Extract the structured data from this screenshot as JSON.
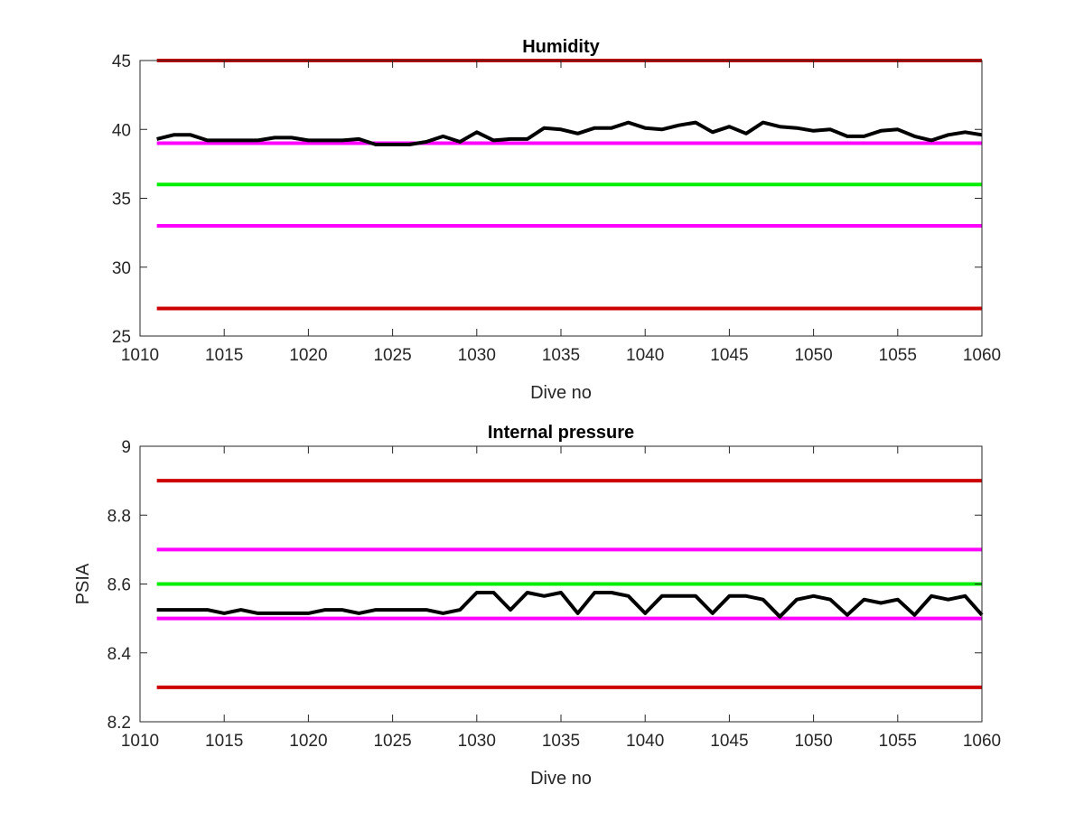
{
  "chart_data": [
    {
      "type": "line",
      "title": "Humidity",
      "xlabel": "Dive no",
      "ylabel": "",
      "xlim": [
        1010,
        1060
      ],
      "ylim": [
        25,
        45
      ],
      "xticks": [
        1010,
        1015,
        1020,
        1025,
        1030,
        1035,
        1040,
        1045,
        1050,
        1055,
        1060
      ],
      "yticks": [
        25,
        30,
        35,
        40,
        45
      ],
      "xtick_labels": [
        "1010",
        "1015",
        "1020",
        "1025",
        "1030",
        "1035",
        "1040",
        "1045",
        "1050",
        "1055",
        "1060"
      ],
      "ytick_labels": [
        "25",
        "30",
        "35",
        "40",
        "45"
      ],
      "grid": false,
      "reference_lines": [
        {
          "y": 45,
          "color": "#cc0000"
        },
        {
          "y": 39,
          "color": "#ff00ff"
        },
        {
          "y": 36,
          "color": "#00ee00"
        },
        {
          "y": 33,
          "color": "#ff00ff"
        },
        {
          "y": 27,
          "color": "#cc0000"
        }
      ],
      "series": [
        {
          "color": "#000000",
          "x": [
            1011,
            1012,
            1013,
            1014,
            1015,
            1016,
            1017,
            1018,
            1019,
            1020,
            1021,
            1022,
            1023,
            1024,
            1025,
            1026,
            1027,
            1028,
            1029,
            1030,
            1031,
            1032,
            1033,
            1034,
            1035,
            1036,
            1037,
            1038,
            1039,
            1040,
            1041,
            1042,
            1043,
            1044,
            1045,
            1046,
            1047,
            1048,
            1049,
            1050,
            1051,
            1052,
            1053,
            1054,
            1055,
            1056,
            1057,
            1058,
            1059,
            1060
          ],
          "values": [
            39.3,
            39.6,
            39.6,
            39.2,
            39.2,
            39.2,
            39.2,
            39.4,
            39.4,
            39.2,
            39.2,
            39.2,
            39.3,
            38.9,
            38.9,
            38.9,
            39.1,
            39.5,
            39.1,
            39.8,
            39.2,
            39.3,
            39.3,
            40.1,
            40.0,
            39.7,
            40.1,
            40.1,
            40.5,
            40.1,
            40.0,
            40.3,
            40.5,
            39.8,
            40.2,
            39.7,
            40.5,
            40.2,
            40.1,
            39.9,
            40.0,
            39.5,
            39.5,
            39.9,
            40.0,
            39.5,
            39.2,
            39.6,
            39.8,
            39.6
          ]
        }
      ]
    },
    {
      "type": "line",
      "title": "Internal pressure",
      "xlabel": "Dive no",
      "ylabel": "PSIA",
      "xlim": [
        1010,
        1060
      ],
      "ylim": [
        8.2,
        9.0
      ],
      "xticks": [
        1010,
        1015,
        1020,
        1025,
        1030,
        1035,
        1040,
        1045,
        1050,
        1055,
        1060
      ],
      "yticks": [
        8.2,
        8.4,
        8.6,
        8.8,
        9.0
      ],
      "xtick_labels": [
        "1010",
        "1015",
        "1020",
        "1025",
        "1030",
        "1035",
        "1040",
        "1045",
        "1050",
        "1055",
        "1060"
      ],
      "ytick_labels": [
        "8.2",
        "8.4",
        "8.6",
        "8.8",
        "9"
      ],
      "grid": false,
      "reference_lines": [
        {
          "y": 8.9,
          "color": "#cc0000"
        },
        {
          "y": 8.7,
          "color": "#ff00ff"
        },
        {
          "y": 8.6,
          "color": "#00ee00"
        },
        {
          "y": 8.5,
          "color": "#ff00ff"
        },
        {
          "y": 8.3,
          "color": "#cc0000"
        }
      ],
      "series": [
        {
          "color": "#000000",
          "x": [
            1011,
            1012,
            1013,
            1014,
            1015,
            1016,
            1017,
            1018,
            1019,
            1020,
            1021,
            1022,
            1023,
            1024,
            1025,
            1026,
            1027,
            1028,
            1029,
            1030,
            1031,
            1032,
            1033,
            1034,
            1035,
            1036,
            1037,
            1038,
            1039,
            1040,
            1041,
            1042,
            1043,
            1044,
            1045,
            1046,
            1047,
            1048,
            1049,
            1050,
            1051,
            1052,
            1053,
            1054,
            1055,
            1056,
            1057,
            1058,
            1059,
            1060
          ],
          "values": [
            8.525,
            8.525,
            8.525,
            8.525,
            8.515,
            8.525,
            8.515,
            8.515,
            8.515,
            8.515,
            8.525,
            8.525,
            8.515,
            8.525,
            8.525,
            8.525,
            8.525,
            8.515,
            8.525,
            8.575,
            8.575,
            8.525,
            8.575,
            8.565,
            8.575,
            8.515,
            8.575,
            8.575,
            8.565,
            8.515,
            8.565,
            8.565,
            8.565,
            8.515,
            8.565,
            8.565,
            8.555,
            8.505,
            8.555,
            8.565,
            8.555,
            8.51,
            8.555,
            8.545,
            8.555,
            8.51,
            8.565,
            8.555,
            8.565,
            8.51
          ]
        }
      ]
    }
  ]
}
